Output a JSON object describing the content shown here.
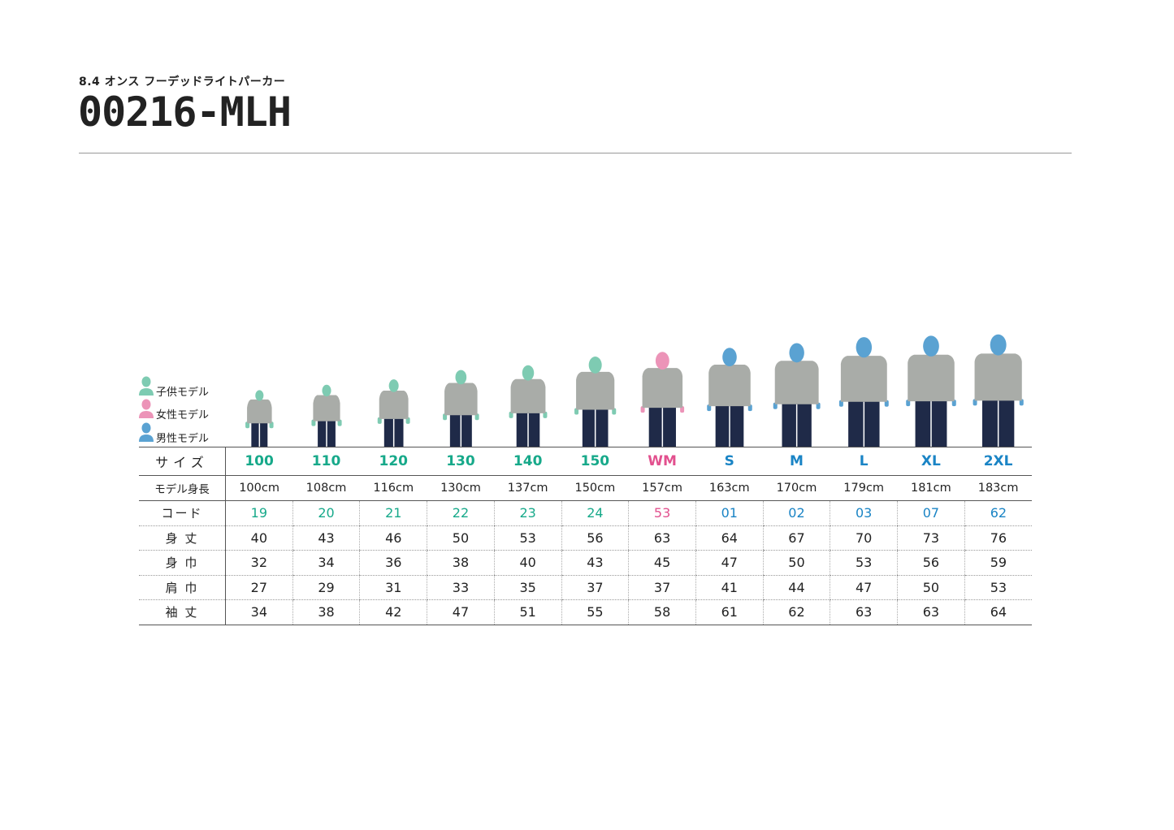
{
  "header": {
    "subtitle": "8.4 オンス フーデッドライトパーカー",
    "title": "00216-MLH"
  },
  "colors": {
    "kid": "#17a98a",
    "woman": "#e2508e",
    "man": "#1a84c5",
    "kid_icon": "#7ecbb2",
    "woman_icon": "#ec94b8",
    "man_icon": "#5aa2d2",
    "hoodie": "#a9aca8",
    "jeans": "#1f2a48"
  },
  "legend": [
    {
      "label": "子供モデル",
      "type": "kid",
      "icon": "person-icon"
    },
    {
      "label": "女性モデル",
      "type": "woman",
      "icon": "person-icon"
    },
    {
      "label": "男性モデル",
      "type": "man",
      "icon": "person-icon"
    }
  ],
  "table": {
    "row_labels": {
      "size": "サイズ",
      "height": "モデル身長",
      "code": "コード",
      "body_length": "身 丈",
      "body_width": "身 巾",
      "shoulder": "肩 巾",
      "sleeve": "袖 丈"
    },
    "columns": [
      {
        "size": "100",
        "height": "100cm",
        "height_cm": 100,
        "type": "kid",
        "code": "19",
        "body_length": "40",
        "body_width": "32",
        "shoulder": "27",
        "sleeve": "34"
      },
      {
        "size": "110",
        "height": "108cm",
        "height_cm": 108,
        "type": "kid",
        "code": "20",
        "body_length": "43",
        "body_width": "34",
        "shoulder": "29",
        "sleeve": "38"
      },
      {
        "size": "120",
        "height": "116cm",
        "height_cm": 116,
        "type": "kid",
        "code": "21",
        "body_length": "46",
        "body_width": "36",
        "shoulder": "31",
        "sleeve": "42"
      },
      {
        "size": "130",
        "height": "130cm",
        "height_cm": 130,
        "type": "kid",
        "code": "22",
        "body_length": "50",
        "body_width": "38",
        "shoulder": "33",
        "sleeve": "47"
      },
      {
        "size": "140",
        "height": "137cm",
        "height_cm": 137,
        "type": "kid",
        "code": "23",
        "body_length": "53",
        "body_width": "40",
        "shoulder": "35",
        "sleeve": "51"
      },
      {
        "size": "150",
        "height": "150cm",
        "height_cm": 150,
        "type": "kid",
        "code": "24",
        "body_length": "56",
        "body_width": "43",
        "shoulder": "37",
        "sleeve": "55"
      },
      {
        "size": "WM",
        "height": "157cm",
        "height_cm": 157,
        "type": "woman",
        "code": "53",
        "body_length": "63",
        "body_width": "45",
        "shoulder": "37",
        "sleeve": "58"
      },
      {
        "size": "S",
        "height": "163cm",
        "height_cm": 163,
        "type": "man",
        "code": "01",
        "body_length": "64",
        "body_width": "47",
        "shoulder": "41",
        "sleeve": "61"
      },
      {
        "size": "M",
        "height": "170cm",
        "height_cm": 170,
        "type": "man",
        "code": "02",
        "body_length": "67",
        "body_width": "50",
        "shoulder": "44",
        "sleeve": "62"
      },
      {
        "size": "L",
        "height": "179cm",
        "height_cm": 179,
        "type": "man",
        "code": "03",
        "body_length": "70",
        "body_width": "53",
        "shoulder": "47",
        "sleeve": "63"
      },
      {
        "size": "XL",
        "height": "181cm",
        "height_cm": 181,
        "type": "man",
        "code": "07",
        "body_length": "73",
        "body_width": "56",
        "shoulder": "50",
        "sleeve": "63"
      },
      {
        "size": "2XL",
        "height": "183cm",
        "height_cm": 183,
        "type": "man",
        "code": "62",
        "body_length": "76",
        "body_width": "59",
        "shoulder": "53",
        "sleeve": "64"
      }
    ]
  }
}
